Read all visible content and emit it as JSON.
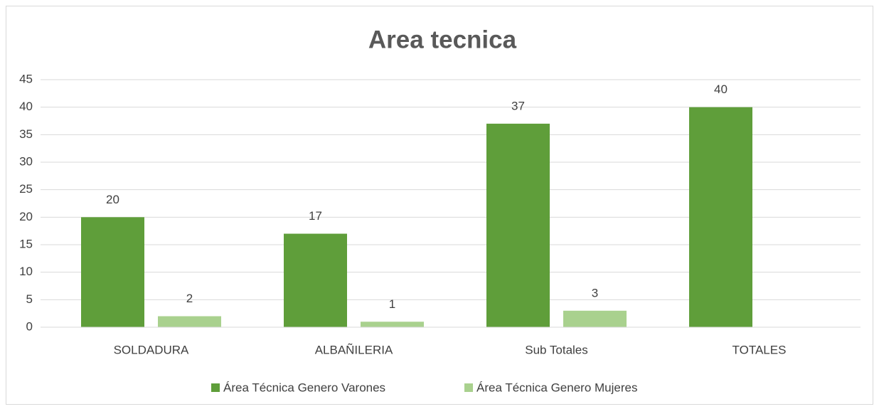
{
  "chart_data": {
    "type": "bar",
    "title": "Area tecnica",
    "categories": [
      "SOLDADURA",
      "ALBAÑILERIA",
      "Sub Totales",
      "TOTALES"
    ],
    "series": [
      {
        "name": "Área Técnica Genero Varones",
        "color": "#5f9e3a",
        "values": [
          20,
          17,
          37,
          40
        ]
      },
      {
        "name": "Área Técnica Genero Mujeres",
        "color": "#a9d18e",
        "values": [
          2,
          1,
          3,
          null
        ]
      }
    ],
    "ylim": [
      0,
      45
    ],
    "yticks": [
      0,
      5,
      10,
      15,
      20,
      25,
      30,
      35,
      40,
      45
    ],
    "grid": true,
    "legend": "bottom"
  }
}
